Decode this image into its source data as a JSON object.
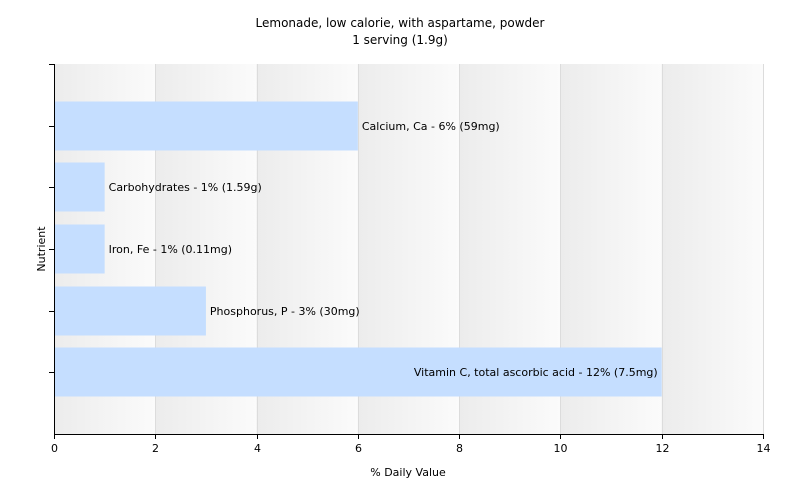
{
  "chart_data": {
    "type": "bar",
    "orientation": "horizontal",
    "title": "Lemonade, low calorie, with aspartame, powder",
    "subtitle": "1 serving (1.9g)",
    "xlabel": "% Daily Value",
    "ylabel": "Nutrient",
    "xlim": [
      0,
      14
    ],
    "x_ticks": [
      0,
      2,
      4,
      6,
      8,
      10,
      12,
      14
    ],
    "grid": true,
    "categories": [
      "Calcium, Ca",
      "Carbohydrates",
      "Iron, Fe",
      "Phosphorus, P",
      "Vitamin C, total ascorbic acid"
    ],
    "values": [
      6,
      1,
      1,
      3,
      12
    ],
    "data_labels": [
      "Calcium, Ca - 6% (59mg)",
      "Carbohydrates - 1% (1.59g)",
      "Iron, Fe - 1% (0.11mg)",
      "Phosphorus, P - 3% (30mg)",
      "Vitamin C, total ascorbic acid - 12% (7.5mg)"
    ],
    "bar_color": "#c5deff",
    "background_color": "#f5f5f5"
  }
}
